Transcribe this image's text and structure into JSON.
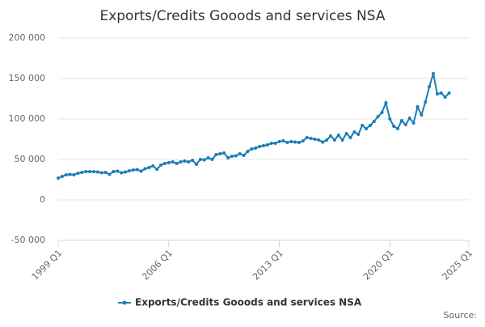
{
  "chart_data": {
    "type": "line",
    "title": "Exports/Credits Gooods and services NSA",
    "source": "Source:",
    "categories": [
      "1999 Q1",
      "1999 Q2",
      "1999 Q3",
      "1999 Q4",
      "2000 Q1",
      "2000 Q2",
      "2000 Q3",
      "2000 Q4",
      "2001 Q1",
      "2001 Q2",
      "2001 Q3",
      "2001 Q4",
      "2002 Q1",
      "2002 Q2",
      "2002 Q3",
      "2002 Q4",
      "2003 Q1",
      "2003 Q2",
      "2003 Q3",
      "2003 Q4",
      "2004 Q1",
      "2004 Q2",
      "2004 Q3",
      "2004 Q4",
      "2005 Q1",
      "2005 Q2",
      "2005 Q3",
      "2005 Q4",
      "2006 Q1",
      "2006 Q2",
      "2006 Q3",
      "2006 Q4",
      "2007 Q1",
      "2007 Q2",
      "2007 Q3",
      "2007 Q4",
      "2008 Q1",
      "2008 Q2",
      "2008 Q3",
      "2008 Q4",
      "2009 Q1",
      "2009 Q2",
      "2009 Q3",
      "2009 Q4",
      "2010 Q1",
      "2010 Q2",
      "2010 Q3",
      "2010 Q4",
      "2011 Q1",
      "2011 Q2",
      "2011 Q3",
      "2011 Q4",
      "2012 Q1",
      "2012 Q2",
      "2012 Q3",
      "2012 Q4",
      "2013 Q1",
      "2013 Q2",
      "2013 Q3",
      "2013 Q4",
      "2014 Q1",
      "2014 Q2",
      "2014 Q3",
      "2014 Q4",
      "2015 Q1",
      "2015 Q2",
      "2015 Q3",
      "2015 Q4",
      "2016 Q1",
      "2016 Q2",
      "2016 Q3",
      "2016 Q4",
      "2017 Q1",
      "2017 Q2",
      "2017 Q3",
      "2017 Q4",
      "2018 Q1",
      "2018 Q2",
      "2018 Q3",
      "2018 Q4",
      "2019 Q1",
      "2019 Q2",
      "2019 Q3",
      "2019 Q4",
      "2020 Q1",
      "2020 Q2",
      "2020 Q3",
      "2020 Q4",
      "2021 Q1",
      "2021 Q2",
      "2021 Q3",
      "2021 Q4",
      "2022 Q1",
      "2022 Q2",
      "2022 Q3",
      "2022 Q4",
      "2023 Q1",
      "2023 Q2",
      "2023 Q3",
      "2023 Q4"
    ],
    "series": [
      {
        "name": "Exports/Credits Gooods and services NSA",
        "color": "#1a7db6",
        "values": [
          27000,
          29000,
          31000,
          31500,
          31000,
          33000,
          34000,
          35000,
          35000,
          35000,
          34500,
          33500,
          34000,
          31500,
          35000,
          35500,
          33500,
          34500,
          36000,
          37000,
          37500,
          35500,
          38500,
          40000,
          42000,
          38000,
          43000,
          45000,
          46000,
          47000,
          45000,
          47000,
          48000,
          47000,
          49000,
          44000,
          50000,
          49500,
          52000,
          50000,
          56000,
          57000,
          58000,
          52000,
          54000,
          54500,
          57000,
          55000,
          60000,
          63000,
          64000,
          66000,
          67000,
          68000,
          70000,
          70000,
          72000,
          73000,
          71000,
          72000,
          71500,
          71000,
          73000,
          77000,
          76000,
          75000,
          74000,
          71500,
          74000,
          79000,
          74000,
          80000,
          74000,
          82000,
          77000,
          84000,
          81000,
          92000,
          88000,
          92000,
          97000,
          103000,
          108000,
          120000,
          100000,
          91000,
          88000,
          98000,
          93000,
          101000,
          95000,
          115000,
          105000,
          121000,
          140000,
          156000,
          131000,
          132000,
          127000,
          132000
        ]
      }
    ],
    "xlim": [
      0,
      104
    ],
    "xticks": [
      {
        "value": 0,
        "label": "1999 Q1"
      },
      {
        "value": 28,
        "label": "2006 Q1"
      },
      {
        "value": 56,
        "label": "2013 Q1"
      },
      {
        "value": 84,
        "label": "2020 Q1"
      },
      {
        "value": 104,
        "label": "2025 Q1"
      }
    ],
    "ylim": [
      -50000,
      200000
    ],
    "yticks": [
      {
        "value": -50000,
        "label": "-50 000"
      },
      {
        "value": 0,
        "label": "0"
      },
      {
        "value": 50000,
        "label": "50 000"
      },
      {
        "value": 100000,
        "label": "100 000"
      },
      {
        "value": 150000,
        "label": "150 000"
      },
      {
        "value": 200000,
        "label": "200 000"
      }
    ],
    "grid": true
  }
}
